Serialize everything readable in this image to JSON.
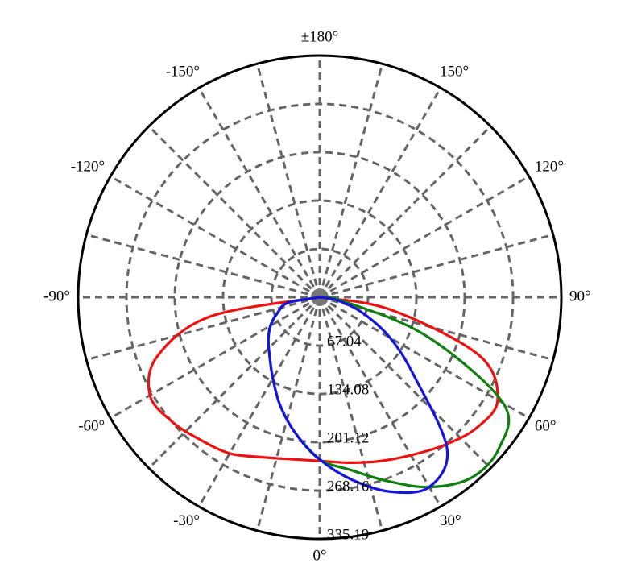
{
  "chart_data": {
    "type": "polar",
    "theta": [
      -90,
      -80,
      -70,
      -60,
      -50,
      -40,
      -30,
      -20,
      -10,
      0,
      10,
      20,
      30,
      40,
      50,
      60,
      70,
      80,
      90
    ],
    "series": [
      {
        "color": "#ee1111",
        "values": [
          0,
          155,
          240,
          272,
          268,
          258,
          250,
          236,
          228,
          227,
          233,
          242,
          253,
          268,
          283,
          285,
          235,
          100,
          0
        ]
      },
      {
        "color": "#118011",
        "values": [
          0,
          45,
          62,
          79,
          93,
          108,
          130,
          160,
          192,
          225,
          243,
          271,
          304,
          327,
          325,
          294,
          158,
          35,
          0
        ]
      },
      {
        "color": "#1515dd",
        "values": [
          0,
          45,
          62,
          79,
          93,
          108,
          130,
          160,
          192,
          225,
          257,
          287,
          304,
          275,
          172,
          113,
          63,
          25,
          0
        ]
      }
    ],
    "rlim": [
      0,
      335.19
    ],
    "rticks": [
      67.04,
      134.08,
      201.12,
      268.16,
      335.19
    ],
    "thetaticks": [
      {
        "value": 0,
        "label": "0°"
      },
      {
        "value": 30,
        "label": "30°"
      },
      {
        "value": 60,
        "label": "60°"
      },
      {
        "value": 90,
        "label": "90°"
      },
      {
        "value": 120,
        "label": "120°"
      },
      {
        "value": 150,
        "label": "150°"
      },
      {
        "value": 180,
        "label": "±180°"
      },
      {
        "value": -150,
        "label": "-150°"
      },
      {
        "value": -120,
        "label": "-120°"
      },
      {
        "value": -90,
        "label": "-90°"
      },
      {
        "value": -60,
        "label": "-60°"
      },
      {
        "value": -30,
        "label": "-30°"
      }
    ],
    "thetagrid": [
      -165,
      -135,
      -105,
      -75,
      -45,
      -15,
      15,
      45,
      75,
      105,
      135,
      165
    ],
    "grid": true
  }
}
